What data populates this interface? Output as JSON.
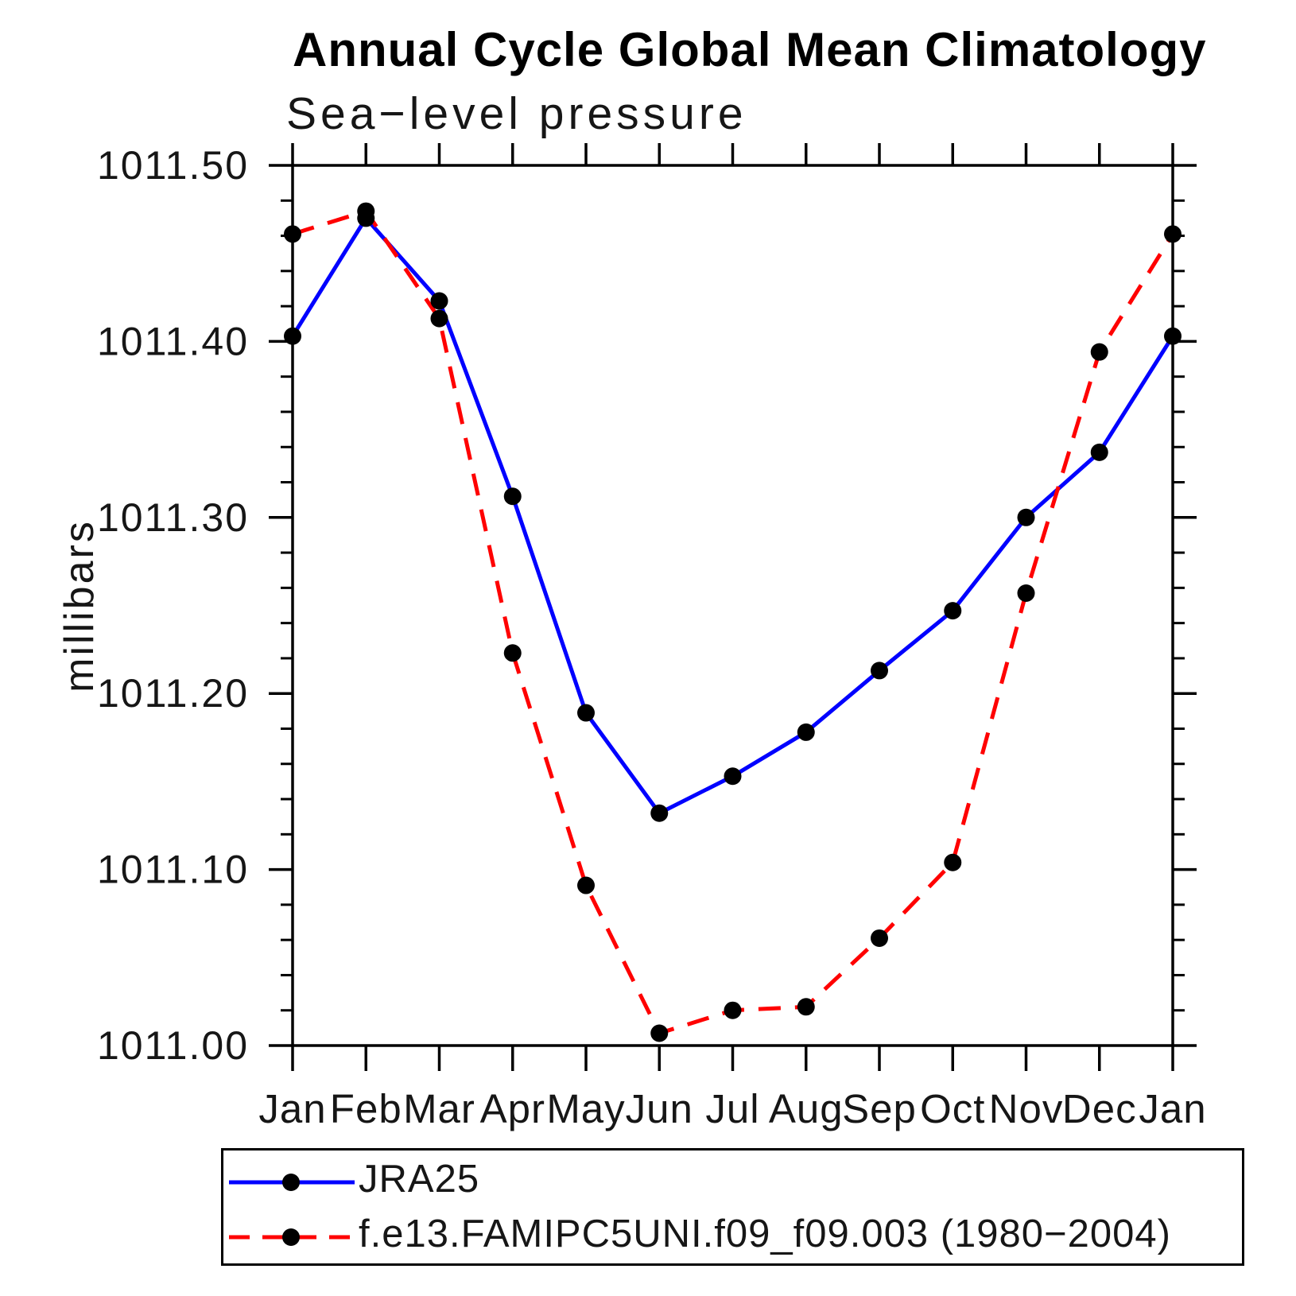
{
  "chart_data": {
    "type": "line",
    "title": "Annual Cycle Global Mean Climatology",
    "subtitle": "Sea−level pressure",
    "ylabel": "millibars",
    "categories": [
      "Jan",
      "Feb",
      "Mar",
      "Apr",
      "May",
      "Jun",
      "Jul",
      "Aug",
      "Sep",
      "Oct",
      "Nov",
      "Dec",
      "Jan"
    ],
    "ylim": [
      1011.0,
      1011.5
    ],
    "y_major_step": 0.1,
    "y_minor_step": 0.02,
    "y_tick_labels": [
      "1011.00",
      "1011.10",
      "1011.20",
      "1011.30",
      "1011.40",
      "1011.50"
    ],
    "grid": false,
    "legend_position": "bottom",
    "marker_color": "#000000",
    "axis_color": "#000000",
    "series": [
      {
        "name": "JRA25",
        "color": "#0000ff",
        "style": "solid",
        "marker": "circle",
        "values": [
          1011.403,
          1011.47,
          1011.423,
          1011.312,
          1011.189,
          1011.132,
          1011.153,
          1011.178,
          1011.213,
          1011.247,
          1011.3,
          1011.337,
          1011.403
        ]
      },
      {
        "name": "f.e13.FAMIPC5UNI.f09_f09.003 (1980−2004)",
        "color": "#ff0000",
        "style": "dashed",
        "marker": "circle",
        "values": [
          1011.461,
          1011.474,
          1011.413,
          1011.223,
          1011.091,
          1011.007,
          1011.02,
          1011.022,
          1011.061,
          1011.104,
          1011.257,
          1011.394,
          1011.461
        ]
      }
    ]
  }
}
